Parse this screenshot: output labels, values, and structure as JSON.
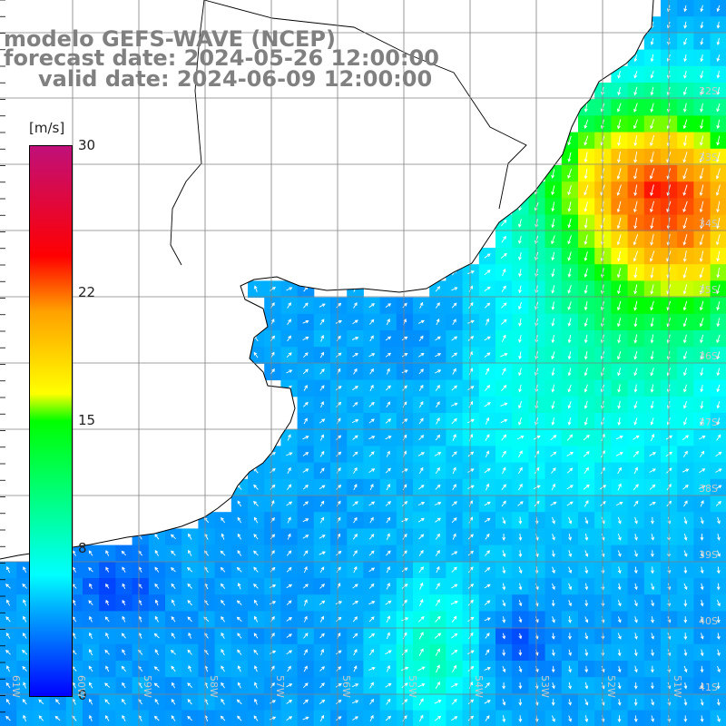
{
  "title": {
    "line1": "modelo GEFS-WAVE (NCEP)",
    "line2": "forecast date: 2024-05-26 12:00:00",
    "line3": "valid date: 2024-06-09 12:00:00"
  },
  "colorbar": {
    "unit": "[m/s]",
    "ticks": [
      {
        "value": 30,
        "label": "30"
      },
      {
        "value": 22,
        "label": "22"
      },
      {
        "value": 15,
        "label": "15"
      },
      {
        "value": 8,
        "label": "8"
      },
      {
        "value": 0,
        "label": "0"
      }
    ],
    "min": 0,
    "max": 30
  },
  "lat_labels": [
    "32S",
    "33S",
    "34S",
    "35S",
    "36S",
    "37S",
    "38S",
    "39S",
    "40S",
    "41S"
  ],
  "lon_labels": [
    "61W",
    "60W",
    "59W",
    "58W",
    "57W",
    "56W",
    "55W",
    "54W",
    "53W",
    "52W",
    "51W"
  ],
  "colors": {
    "land": "#ffffff",
    "coast": "#000000",
    "grid": "#808080",
    "arrow": "#ffffff"
  }
}
